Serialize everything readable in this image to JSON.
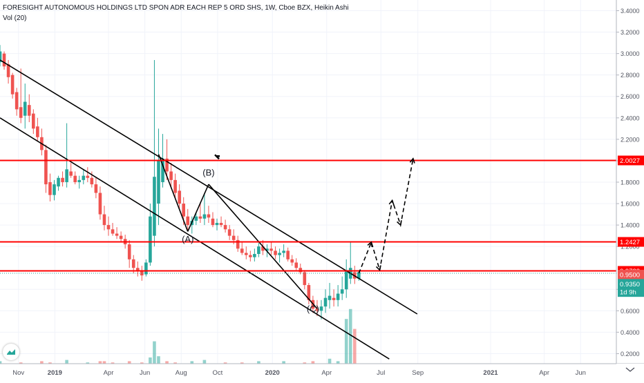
{
  "header": {
    "title": "FORESIGHT AUTONOMOUS HOLDINGS LTD SPON ADR EACH REP 5 ORD SHS, 1W, Cboe BZX, Heikin Ashi",
    "volume_label": "Vol (20)"
  },
  "colors": {
    "up": "#26a69a",
    "down": "#ef5350",
    "level_line": "#ff0000",
    "trend_line": "#000000",
    "grid": "#f0f3fa",
    "axis_text": "#50535e"
  },
  "chart_data": {
    "type": "candlestick",
    "title": "FORESIGHT AUTONOMOUS HOLDINGS LTD SPON ADR EACH REP 5 ORD SHS, 1W, Cboe BZX, Heikin Ashi",
    "ylim": [
      0.2,
      3.5
    ],
    "xlim": [
      "2018-10-01",
      "2021-07-31"
    ],
    "y_ticks": [
      "3.4000",
      "3.2000",
      "3.0000",
      "2.8000",
      "2.6000",
      "2.4000",
      "2.2000",
      "2.0000",
      "1.8000",
      "1.6000",
      "1.4000",
      "1.2000",
      "0.8000",
      "0.6000",
      "0.4000",
      "0.2000"
    ],
    "x_ticks": [
      {
        "label": "Nov",
        "date": "2018-11-01"
      },
      {
        "label": "2019",
        "date": "2019-01-01"
      },
      {
        "label": "Apr",
        "date": "2019-04-01"
      },
      {
        "label": "Jun",
        "date": "2019-06-01"
      },
      {
        "label": "Aug",
        "date": "2019-08-01"
      },
      {
        "label": "Oct",
        "date": "2019-10-01"
      },
      {
        "label": "2020",
        "date": "2020-01-01"
      },
      {
        "label": "Apr",
        "date": "2020-04-01"
      },
      {
        "label": "Jul",
        "date": "2020-07-01"
      },
      {
        "label": "Sep",
        "date": "2020-09-01"
      },
      {
        "label": "2021",
        "date": "2021-01-01"
      },
      {
        "label": "Apr",
        "date": "2021-04-01"
      },
      {
        "label": "Jun",
        "date": "2021-06-01"
      }
    ],
    "candles": [
      {
        "date": "2018-10-01",
        "open": 2.92,
        "high": 3.08,
        "low": 2.88,
        "close": 3.02
      },
      {
        "date": "2018-10-08",
        "open": 3.0,
        "high": 3.02,
        "low": 2.85,
        "close": 2.88
      },
      {
        "date": "2018-10-15",
        "open": 2.9,
        "high": 2.94,
        "low": 2.72,
        "close": 2.78
      },
      {
        "date": "2018-10-22",
        "open": 2.8,
        "high": 2.82,
        "low": 2.58,
        "close": 2.62
      },
      {
        "date": "2018-10-29",
        "open": 2.64,
        "high": 2.68,
        "low": 2.42,
        "close": 2.48
      },
      {
        "date": "2018-11-05",
        "open": 2.5,
        "high": 2.86,
        "low": 2.35,
        "close": 2.4
      },
      {
        "date": "2018-11-12",
        "open": 2.42,
        "high": 2.72,
        "low": 2.3,
        "close": 2.55
      },
      {
        "date": "2018-11-19",
        "open": 2.52,
        "high": 2.62,
        "low": 2.36,
        "close": 2.42
      },
      {
        "date": "2018-11-26",
        "open": 2.44,
        "high": 2.48,
        "low": 2.25,
        "close": 2.3
      },
      {
        "date": "2018-12-03",
        "open": 2.32,
        "high": 2.4,
        "low": 2.18,
        "close": 2.22
      },
      {
        "date": "2018-12-10",
        "open": 2.22,
        "high": 2.3,
        "low": 2.05,
        "close": 2.1
      },
      {
        "date": "2018-12-17",
        "open": 2.1,
        "high": 2.15,
        "low": 1.7,
        "close": 1.78
      },
      {
        "date": "2018-12-24",
        "open": 1.8,
        "high": 1.88,
        "low": 1.62,
        "close": 1.68
      },
      {
        "date": "2018-12-31",
        "open": 1.68,
        "high": 1.82,
        "low": 1.63,
        "close": 1.78
      },
      {
        "date": "2019-01-07",
        "open": 1.76,
        "high": 1.86,
        "low": 1.72,
        "close": 1.84
      },
      {
        "date": "2019-01-14",
        "open": 1.84,
        "high": 1.9,
        "low": 1.76,
        "close": 1.8
      },
      {
        "date": "2019-01-21",
        "open": 1.8,
        "high": 2.35,
        "low": 1.75,
        "close": 1.92
      },
      {
        "date": "2019-01-28",
        "open": 1.9,
        "high": 1.98,
        "low": 1.84,
        "close": 1.86
      },
      {
        "date": "2019-02-04",
        "open": 1.86,
        "high": 1.9,
        "low": 1.78,
        "close": 1.8
      },
      {
        "date": "2019-02-11",
        "open": 1.8,
        "high": 1.86,
        "low": 1.74,
        "close": 1.82
      },
      {
        "date": "2019-02-18",
        "open": 1.82,
        "high": 1.92,
        "low": 1.78,
        "close": 1.86
      },
      {
        "date": "2019-02-25",
        "open": 1.86,
        "high": 1.94,
        "low": 1.8,
        "close": 1.84
      },
      {
        "date": "2019-03-04",
        "open": 1.84,
        "high": 1.9,
        "low": 1.75,
        "close": 1.78
      },
      {
        "date": "2019-03-11",
        "open": 1.78,
        "high": 1.84,
        "low": 1.65,
        "close": 1.7
      },
      {
        "date": "2019-03-18",
        "open": 1.7,
        "high": 1.76,
        "low": 1.45,
        "close": 1.5
      },
      {
        "date": "2019-03-25",
        "open": 1.5,
        "high": 1.58,
        "low": 1.35,
        "close": 1.4
      },
      {
        "date": "2019-04-01",
        "open": 1.4,
        "high": 1.48,
        "low": 1.3,
        "close": 1.36
      },
      {
        "date": "2019-04-08",
        "open": 1.36,
        "high": 1.42,
        "low": 1.3,
        "close": 1.32
      },
      {
        "date": "2019-04-15",
        "open": 1.32,
        "high": 1.38,
        "low": 1.27,
        "close": 1.3
      },
      {
        "date": "2019-04-22",
        "open": 1.3,
        "high": 1.34,
        "low": 1.24,
        "close": 1.27
      },
      {
        "date": "2019-04-29",
        "open": 1.27,
        "high": 1.31,
        "low": 1.18,
        "close": 1.22
      },
      {
        "date": "2019-05-06",
        "open": 1.22,
        "high": 1.26,
        "low": 1.0,
        "close": 1.08
      },
      {
        "date": "2019-05-13",
        "open": 1.08,
        "high": 1.12,
        "low": 0.95,
        "close": 1.0
      },
      {
        "date": "2019-05-20",
        "open": 1.0,
        "high": 1.06,
        "low": 0.92,
        "close": 0.97
      },
      {
        "date": "2019-05-27",
        "open": 0.97,
        "high": 1.02,
        "low": 0.88,
        "close": 0.93
      },
      {
        "date": "2019-06-03",
        "open": 0.94,
        "high": 1.08,
        "low": 0.92,
        "close": 1.05
      },
      {
        "date": "2019-06-10",
        "open": 1.05,
        "high": 1.6,
        "low": 1.02,
        "close": 1.48
      },
      {
        "date": "2019-06-17",
        "open": 1.3,
        "high": 2.94,
        "low": 1.2,
        "close": 1.85
      },
      {
        "date": "2019-06-24",
        "open": 1.6,
        "high": 2.3,
        "low": 1.4,
        "close": 2.0
      },
      {
        "date": "2019-07-01",
        "open": 1.8,
        "high": 2.25,
        "low": 1.75,
        "close": 2.02
      },
      {
        "date": "2019-07-08",
        "open": 2.02,
        "high": 2.2,
        "low": 1.82,
        "close": 1.9
      },
      {
        "date": "2019-07-15",
        "open": 1.9,
        "high": 1.98,
        "low": 1.75,
        "close": 1.82
      },
      {
        "date": "2019-07-22",
        "open": 1.82,
        "high": 1.88,
        "low": 1.65,
        "close": 1.7
      },
      {
        "date": "2019-07-29",
        "open": 1.72,
        "high": 1.78,
        "low": 1.55,
        "close": 1.6
      },
      {
        "date": "2019-08-05",
        "open": 1.6,
        "high": 1.66,
        "low": 1.4,
        "close": 1.48
      },
      {
        "date": "2019-08-12",
        "open": 1.48,
        "high": 1.55,
        "low": 1.35,
        "close": 1.4
      },
      {
        "date": "2019-08-19",
        "open": 1.4,
        "high": 1.48,
        "low": 1.32,
        "close": 1.44
      },
      {
        "date": "2019-08-26",
        "open": 1.44,
        "high": 1.52,
        "low": 1.4,
        "close": 1.48
      },
      {
        "date": "2019-09-02",
        "open": 1.48,
        "high": 1.6,
        "low": 1.42,
        "close": 1.46
      },
      {
        "date": "2019-09-09",
        "open": 1.46,
        "high": 1.7,
        "low": 1.4,
        "close": 1.5
      },
      {
        "date": "2019-09-16",
        "open": 1.5,
        "high": 1.58,
        "low": 1.42,
        "close": 1.47
      },
      {
        "date": "2019-09-23",
        "open": 1.46,
        "high": 1.52,
        "low": 1.38,
        "close": 1.4
      },
      {
        "date": "2019-09-30",
        "open": 1.4,
        "high": 1.46,
        "low": 1.35,
        "close": 1.42
      },
      {
        "date": "2019-10-07",
        "open": 1.42,
        "high": 1.48,
        "low": 1.38,
        "close": 1.4
      },
      {
        "date": "2019-10-14",
        "open": 1.4,
        "high": 1.45,
        "low": 1.33,
        "close": 1.36
      },
      {
        "date": "2019-10-21",
        "open": 1.36,
        "high": 1.4,
        "low": 1.26,
        "close": 1.3
      },
      {
        "date": "2019-10-28",
        "open": 1.3,
        "high": 1.36,
        "low": 1.22,
        "close": 1.26
      },
      {
        "date": "2019-11-04",
        "open": 1.26,
        "high": 1.3,
        "low": 1.15,
        "close": 1.18
      },
      {
        "date": "2019-11-11",
        "open": 1.18,
        "high": 1.24,
        "low": 1.12,
        "close": 1.14
      },
      {
        "date": "2019-11-18",
        "open": 1.14,
        "high": 1.2,
        "low": 1.08,
        "close": 1.12
      },
      {
        "date": "2019-11-25",
        "open": 1.12,
        "high": 1.16,
        "low": 1.06,
        "close": 1.1
      },
      {
        "date": "2019-12-02",
        "open": 1.1,
        "high": 1.18,
        "low": 1.06,
        "close": 1.13
      },
      {
        "date": "2019-12-09",
        "open": 1.13,
        "high": 1.25,
        "low": 1.1,
        "close": 1.2
      },
      {
        "date": "2019-12-16",
        "open": 1.2,
        "high": 1.26,
        "low": 1.12,
        "close": 1.16
      },
      {
        "date": "2019-12-23",
        "open": 1.16,
        "high": 1.22,
        "low": 1.1,
        "close": 1.18
      },
      {
        "date": "2019-12-30",
        "open": 1.18,
        "high": 1.24,
        "low": 1.12,
        "close": 1.16
      },
      {
        "date": "2020-01-06",
        "open": 1.16,
        "high": 1.2,
        "low": 1.08,
        "close": 1.12
      },
      {
        "date": "2020-01-13",
        "open": 1.12,
        "high": 1.18,
        "low": 1.05,
        "close": 1.14
      },
      {
        "date": "2020-01-20",
        "open": 1.14,
        "high": 1.22,
        "low": 1.1,
        "close": 1.16
      },
      {
        "date": "2020-01-27",
        "open": 1.16,
        "high": 1.19,
        "low": 1.06,
        "close": 1.08
      },
      {
        "date": "2020-02-03",
        "open": 1.08,
        "high": 1.12,
        "low": 1.02,
        "close": 1.05
      },
      {
        "date": "2020-02-10",
        "open": 1.05,
        "high": 1.09,
        "low": 0.98,
        "close": 1.0
      },
      {
        "date": "2020-02-17",
        "open": 1.0,
        "high": 1.04,
        "low": 0.94,
        "close": 0.96
      },
      {
        "date": "2020-02-24",
        "open": 0.96,
        "high": 0.98,
        "low": 0.8,
        "close": 0.84
      },
      {
        "date": "2020-03-02",
        "open": 0.84,
        "high": 0.86,
        "low": 0.66,
        "close": 0.7
      },
      {
        "date": "2020-03-09",
        "open": 0.7,
        "high": 0.74,
        "low": 0.58,
        "close": 0.62
      },
      {
        "date": "2020-03-16",
        "open": 0.62,
        "high": 0.7,
        "low": 0.55,
        "close": 0.6
      },
      {
        "date": "2020-03-23",
        "open": 0.6,
        "high": 0.7,
        "low": 0.52,
        "close": 0.64
      },
      {
        "date": "2020-03-30",
        "open": 0.64,
        "high": 0.8,
        "low": 0.58,
        "close": 0.72
      },
      {
        "date": "2020-04-06",
        "open": 0.7,
        "high": 0.86,
        "low": 0.62,
        "close": 0.74
      },
      {
        "date": "2020-04-13",
        "open": 0.72,
        "high": 0.8,
        "low": 0.64,
        "close": 0.7
      },
      {
        "date": "2020-04-20",
        "open": 0.7,
        "high": 0.84,
        "low": 0.64,
        "close": 0.76
      },
      {
        "date": "2020-04-27",
        "open": 0.76,
        "high": 0.92,
        "low": 0.7,
        "close": 0.8
      },
      {
        "date": "2020-05-04",
        "open": 0.8,
        "high": 1.08,
        "low": 0.72,
        "close": 0.98
      },
      {
        "date": "2020-05-11",
        "open": 0.9,
        "high": 1.24,
        "low": 0.85,
        "close": 1.0
      },
      {
        "date": "2020-05-18",
        "open": 0.96,
        "high": 1.02,
        "low": 0.85,
        "close": 0.9
      },
      {
        "date": "2020-05-25",
        "open": 0.9,
        "high": 0.98,
        "low": 0.88,
        "close": 0.96
      }
    ],
    "volume": [
      {
        "date": "2018-10-01",
        "value": 2,
        "up": true
      },
      {
        "date": "2018-11-05",
        "value": 1,
        "up": false
      },
      {
        "date": "2018-12-10",
        "value": 2,
        "up": false
      },
      {
        "date": "2018-12-24",
        "value": 1,
        "up": false
      },
      {
        "date": "2019-01-21",
        "value": 3,
        "up": true
      },
      {
        "date": "2019-02-25",
        "value": 1,
        "up": true
      },
      {
        "date": "2019-03-18",
        "value": 2,
        "up": false
      },
      {
        "date": "2019-03-25",
        "value": 2,
        "up": false
      },
      {
        "date": "2019-04-08",
        "value": 1,
        "up": false
      },
      {
        "date": "2019-05-06",
        "value": 2,
        "up": false
      },
      {
        "date": "2019-05-27",
        "value": 1,
        "up": false
      },
      {
        "date": "2019-06-10",
        "value": 5,
        "up": true
      },
      {
        "date": "2019-06-17",
        "value": 18,
        "up": true
      },
      {
        "date": "2019-06-24",
        "value": 6,
        "up": true
      },
      {
        "date": "2019-07-08",
        "value": 2,
        "up": false
      },
      {
        "date": "2019-07-22",
        "value": 1,
        "up": false
      },
      {
        "date": "2019-08-19",
        "value": 2,
        "up": true
      },
      {
        "date": "2019-09-09",
        "value": 3,
        "up": true
      },
      {
        "date": "2019-10-14",
        "value": 1,
        "up": false
      },
      {
        "date": "2019-11-11",
        "value": 1,
        "up": false
      },
      {
        "date": "2019-12-09",
        "value": 2,
        "up": true
      },
      {
        "date": "2020-01-20",
        "value": 2,
        "up": true
      },
      {
        "date": "2020-02-24",
        "value": 1,
        "up": false
      },
      {
        "date": "2020-03-09",
        "value": 2,
        "up": false
      },
      {
        "date": "2020-04-06",
        "value": 4,
        "up": true
      },
      {
        "date": "2020-04-20",
        "value": 2,
        "up": true
      },
      {
        "date": "2020-05-04",
        "value": 36,
        "up": true
      },
      {
        "date": "2020-05-11",
        "value": 44,
        "up": true
      },
      {
        "date": "2020-05-18",
        "value": 28,
        "up": false
      }
    ],
    "horizontal_levels": [
      {
        "value": 2.0027,
        "label": "2.0027"
      },
      {
        "value": 1.2427,
        "label": "1.2427"
      },
      {
        "value": 0.9723,
        "label": "0.9723"
      }
    ],
    "price_tags": [
      {
        "value": 0.95,
        "label": "0.9500",
        "kind": "down"
      },
      {
        "value": 0.935,
        "label": "0.9350",
        "kind": "up"
      },
      {
        "value": 0.82,
        "label": "1d 9h",
        "kind": "timer"
      }
    ],
    "trend_lines": [
      {
        "from": {
          "date": "2018-10-01",
          "value": 2.94
        },
        "to": {
          "date": "2020-08-31",
          "value": 0.57
        }
      },
      {
        "from": {
          "date": "2018-10-01",
          "value": 2.4
        },
        "to": {
          "date": "2020-07-15",
          "value": 0.15
        }
      },
      {
        "from": {
          "date": "2019-06-24",
          "value": 2.06
        },
        "to": {
          "date": "2019-08-12",
          "value": 1.34
        }
      },
      {
        "from": {
          "date": "2019-08-12",
          "value": 1.34
        },
        "to": {
          "date": "2019-09-16",
          "value": 1.78
        }
      },
      {
        "from": {
          "date": "2019-09-16",
          "value": 1.78
        },
        "to": {
          "date": "2020-03-16",
          "value": 0.62
        }
      }
    ],
    "wave_labels": [
      {
        "text": "(A)",
        "date": "2019-08-12",
        "value": 1.24
      },
      {
        "text": "(B)",
        "date": "2019-09-16",
        "value": 1.86
      },
      {
        "text": "(C)",
        "date": "2020-03-09",
        "value": 0.59
      }
    ],
    "projection_path": [
      {
        "date": "2020-05-25",
        "value": 0.95
      },
      {
        "date": "2020-06-15",
        "value": 1.24
      },
      {
        "date": "2020-06-29",
        "value": 0.98
      },
      {
        "date": "2020-07-20",
        "value": 1.63
      },
      {
        "date": "2020-08-03",
        "value": 1.4
      },
      {
        "date": "2020-08-24",
        "value": 2.02
      }
    ],
    "marker": {
      "date": "2019-09-30",
      "value": 2.03
    }
  }
}
